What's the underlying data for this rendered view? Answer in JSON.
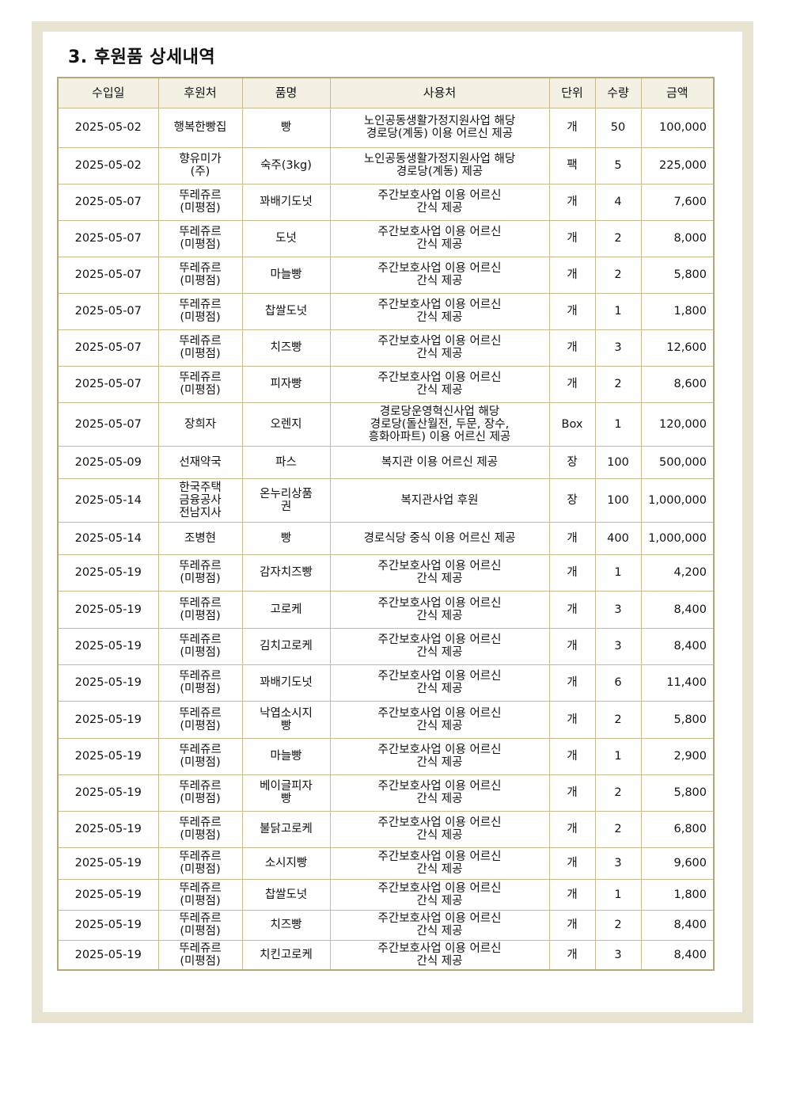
{
  "title": "3. 후원품 상세내역",
  "table": {
    "headers": [
      "수입일",
      "후원처",
      "품명",
      "사용처",
      "단위",
      "수량",
      "금액"
    ],
    "rows": [
      [
        "2025-05-02",
        "행복한빵집",
        "빵",
        "노인공동생활가정지원사업 해당\n경로당(계동) 이용 어르신 제공",
        "개",
        "50",
        "100,000"
      ],
      [
        "2025-05-02",
        "향유미가\n(주)",
        "숙주(3kg)",
        "노인공동생활가정지원사업 해당\n경로당(계동) 제공",
        "팩",
        "5",
        "225,000"
      ],
      [
        "2025-05-07",
        "뚜레쥬르\n(미평점)",
        "꽈배기도넛",
        "주간보호사업 이용 어르신\n간식 제공",
        "개",
        "4",
        "7,600"
      ],
      [
        "2025-05-07",
        "뚜레쥬르\n(미평점)",
        "도넛",
        "주간보호사업 이용 어르신\n간식 제공",
        "개",
        "2",
        "8,000"
      ],
      [
        "2025-05-07",
        "뚜레쥬르\n(미평점)",
        "마늘빵",
        "주간보호사업 이용 어르신\n간식 제공",
        "개",
        "2",
        "5,800"
      ],
      [
        "2025-05-07",
        "뚜레쥬르\n(미평점)",
        "찹쌀도넛",
        "주간보호사업 이용 어르신\n간식 제공",
        "개",
        "1",
        "1,800"
      ],
      [
        "2025-05-07",
        "뚜레쥬르\n(미평점)",
        "치즈빵",
        "주간보호사업 이용 어르신\n간식 제공",
        "개",
        "3",
        "12,600"
      ],
      [
        "2025-05-07",
        "뚜레쥬르\n(미평점)",
        "피자빵",
        "주간보호사업 이용 어르신\n간식 제공",
        "개",
        "2",
        "8,600"
      ],
      [
        "2025-05-07",
        "장희자",
        "오렌지",
        "경로당운영혁신사업 해당\n경로당(돌산월전, 두문, 장수,\n흥화아파트) 이용 어르신 제공",
        "Box",
        "1",
        "120,000"
      ],
      [
        "2025-05-09",
        "선재약국",
        "파스",
        "복지관 이용 어르신 제공",
        "장",
        "100",
        "500,000"
      ],
      [
        "2025-05-14",
        "한국주택\n금융공사\n전남지사",
        "온누리상품\n권",
        "복지관사업 후원",
        "장",
        "100",
        "1,000,000"
      ],
      [
        "2025-05-14",
        "조병현",
        "빵",
        "경로식당 중식 이용 어르신 제공",
        "개",
        "400",
        "1,000,000"
      ],
      [
        "2025-05-19",
        "뚜레쥬르\n(미평점)",
        "감자치즈빵",
        "주간보호사업 이용 어르신\n간식 제공",
        "개",
        "1",
        "4,200"
      ],
      [
        "2025-05-19",
        "뚜레쥬르\n(미평점)",
        "고로케",
        "주간보호사업 이용 어르신\n간식 제공",
        "개",
        "3",
        "8,400"
      ],
      [
        "2025-05-19",
        "뚜레쥬르\n(미평점)",
        "김치고로케",
        "주간보호사업 이용 어르신\n간식 제공",
        "개",
        "3",
        "8,400"
      ],
      [
        "2025-05-19",
        "뚜레쥬르\n(미평점)",
        "꽈배기도넛",
        "주간보호사업 이용 어르신\n간식 제공",
        "개",
        "6",
        "11,400"
      ],
      [
        "2025-05-19",
        "뚜레쥬르\n(미평점)",
        "낙엽소시지\n빵",
        "주간보호사업 이용 어르신\n간식 제공",
        "개",
        "2",
        "5,800"
      ],
      [
        "2025-05-19",
        "뚜레쥬르\n(미평점)",
        "마늘빵",
        "주간보호사업 이용 어르신\n간식 제공",
        "개",
        "1",
        "2,900"
      ],
      [
        "2025-05-19",
        "뚜레쥬르\n(미평점)",
        "베이글피자\n빵",
        "주간보호사업 이용 어르신\n간식 제공",
        "개",
        "2",
        "5,800"
      ],
      [
        "2025-05-19",
        "뚜레쥬르\n(미평점)",
        "불닭고로케",
        "주간보호사업 이용 어르신\n간식 제공",
        "개",
        "2",
        "6,800"
      ],
      [
        "2025-05-19",
        "뚜레쥬르\n(미평점)",
        "소시지빵",
        "주간보호사업 이용 어르신\n간식 제공",
        "개",
        "3",
        "9,600"
      ],
      [
        "2025-05-19",
        "뚜레쥬르\n(미평점)",
        "찹쌀도넛",
        "주간보호사업 이용 어르신\n간식 제공",
        "개",
        "1",
        "1,800"
      ],
      [
        "2025-05-19",
        "뚜레쥬르\n(미평점)",
        "치즈빵",
        "주간보호사업 이용 어르신\n간식 제공",
        "개",
        "2",
        "8,400"
      ],
      [
        "2025-05-19",
        "뚜레쥬르\n(미평점)",
        "치킨고로케",
        "주간보호사업 이용 어르신\n간식 제공",
        "개",
        "3",
        "8,400"
      ]
    ]
  },
  "colors": {
    "frame": "#e9e3d2",
    "header_bg": "#f4f0e3",
    "border": "#b5a77a"
  }
}
